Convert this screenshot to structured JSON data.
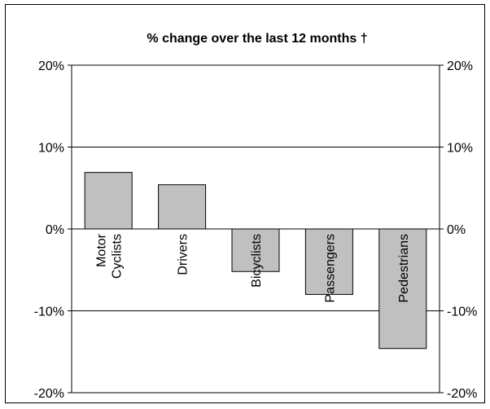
{
  "chart_data": {
    "type": "bar",
    "title": "% change over the last 12 months †",
    "categories": [
      [
        "Motor",
        "Cyclists"
      ],
      [
        "Drivers"
      ],
      [
        "Bicyclists"
      ],
      [
        "Passengers"
      ],
      [
        "Pedestrians"
      ]
    ],
    "values": [
      6.9,
      5.4,
      -5.2,
      -8.0,
      -14.6
    ],
    "ylim": [
      -20,
      20
    ],
    "yticks": [
      20,
      10,
      0,
      -10,
      -20
    ],
    "ytick_labels": [
      "20%",
      "10%",
      "0%",
      "-10%",
      "-20%"
    ],
    "secondary_y_axis": true,
    "grid": true,
    "bar_color": "#c0c0c0",
    "legend": "none",
    "xlabel": "",
    "ylabel": ""
  }
}
